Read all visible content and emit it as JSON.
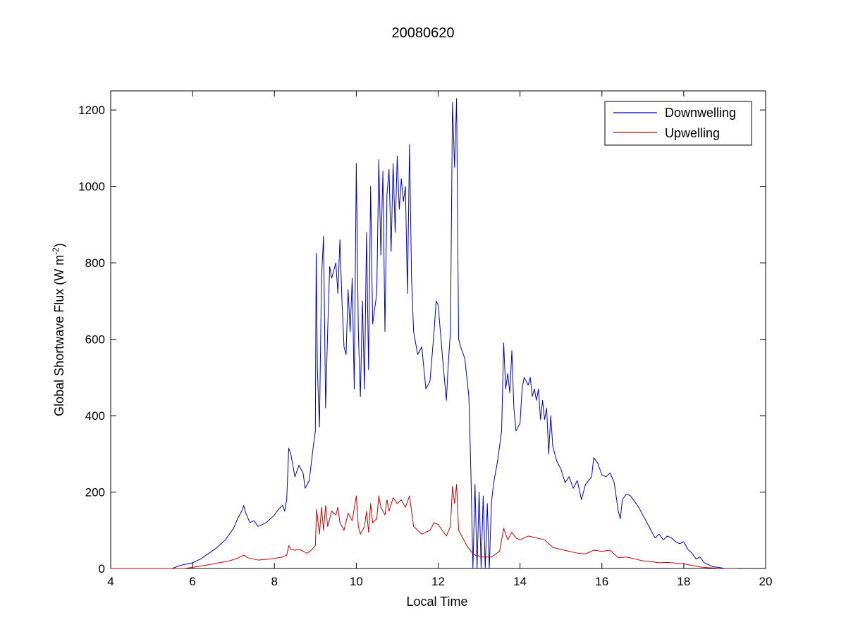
{
  "chart_data": {
    "type": "line",
    "title": "20080620",
    "xlabel": "Local Time",
    "ylabel": "Global Shortwave Flux (W m",
    "ylabel_sup": "-2",
    "ylabel_close": ")",
    "xlim": [
      4,
      20
    ],
    "ylim": [
      0,
      1250
    ],
    "xticks": [
      4,
      6,
      8,
      10,
      12,
      14,
      16,
      18,
      20
    ],
    "yticks": [
      0,
      200,
      400,
      600,
      800,
      1000,
      1200
    ],
    "grid": false,
    "legend_position": "top-right",
    "series": [
      {
        "name": "Downwelling",
        "color": "#0000cc",
        "points": [
          [
            4.0,
            0
          ],
          [
            5.5,
            0
          ],
          [
            5.7,
            8
          ],
          [
            6.0,
            15
          ],
          [
            6.2,
            25
          ],
          [
            6.4,
            40
          ],
          [
            6.6,
            55
          ],
          [
            6.8,
            75
          ],
          [
            7.0,
            105
          ],
          [
            7.1,
            130
          ],
          [
            7.2,
            150
          ],
          [
            7.25,
            165
          ],
          [
            7.3,
            145
          ],
          [
            7.4,
            120
          ],
          [
            7.5,
            125
          ],
          [
            7.6,
            110
          ],
          [
            7.8,
            120
          ],
          [
            8.0,
            140
          ],
          [
            8.1,
            155
          ],
          [
            8.2,
            165
          ],
          [
            8.25,
            150
          ],
          [
            8.3,
            180
          ],
          [
            8.35,
            315
          ],
          [
            8.4,
            300
          ],
          [
            8.5,
            240
          ],
          [
            8.6,
            270
          ],
          [
            8.7,
            250
          ],
          [
            8.75,
            210
          ],
          [
            8.85,
            230
          ],
          [
            8.95,
            320
          ],
          [
            9.0,
            360
          ],
          [
            9.02,
            825
          ],
          [
            9.05,
            520
          ],
          [
            9.1,
            370
          ],
          [
            9.15,
            760
          ],
          [
            9.2,
            870
          ],
          [
            9.25,
            420
          ],
          [
            9.3,
            620
          ],
          [
            9.35,
            790
          ],
          [
            9.4,
            760
          ],
          [
            9.5,
            800
          ],
          [
            9.55,
            720
          ],
          [
            9.6,
            860
          ],
          [
            9.65,
            700
          ],
          [
            9.7,
            580
          ],
          [
            9.75,
            560
          ],
          [
            9.8,
            730
          ],
          [
            9.85,
            620
          ],
          [
            9.9,
            760
          ],
          [
            9.95,
            470
          ],
          [
            10.0,
            1060
          ],
          [
            10.05,
            620
          ],
          [
            10.1,
            450
          ],
          [
            10.15,
            700
          ],
          [
            10.2,
            470
          ],
          [
            10.25,
            880
          ],
          [
            10.3,
            520
          ],
          [
            10.35,
            1000
          ],
          [
            10.4,
            640
          ],
          [
            10.5,
            720
          ],
          [
            10.55,
            1070
          ],
          [
            10.6,
            820
          ],
          [
            10.65,
            1040
          ],
          [
            10.7,
            620
          ],
          [
            10.75,
            980
          ],
          [
            10.8,
            1045
          ],
          [
            10.85,
            830
          ],
          [
            10.9,
            1060
          ],
          [
            10.95,
            880
          ],
          [
            11.0,
            1080
          ],
          [
            11.05,
            940
          ],
          [
            11.1,
            1020
          ],
          [
            11.15,
            960
          ],
          [
            11.2,
            1000
          ],
          [
            11.25,
            720
          ],
          [
            11.3,
            1110
          ],
          [
            11.35,
            760
          ],
          [
            11.4,
            620
          ],
          [
            11.5,
            560
          ],
          [
            11.6,
            580
          ],
          [
            11.7,
            470
          ],
          [
            11.8,
            490
          ],
          [
            11.9,
            620
          ],
          [
            11.95,
            700
          ],
          [
            12.0,
            690
          ],
          [
            12.1,
            560
          ],
          [
            12.2,
            440
          ],
          [
            12.25,
            540
          ],
          [
            12.3,
            620
          ],
          [
            12.35,
            1220
          ],
          [
            12.4,
            1050
          ],
          [
            12.45,
            1230
          ],
          [
            12.5,
            600
          ],
          [
            12.55,
            580
          ],
          [
            12.65,
            550
          ],
          [
            12.75,
            450
          ],
          [
            12.8,
            250
          ],
          [
            12.85,
            0
          ],
          [
            12.9,
            220
          ],
          [
            12.95,
            0
          ],
          [
            13.0,
            200
          ],
          [
            13.05,
            0
          ],
          [
            13.1,
            190
          ],
          [
            13.15,
            0
          ],
          [
            13.2,
            170
          ],
          [
            13.25,
            0
          ],
          [
            13.3,
            170
          ],
          [
            13.35,
            220
          ],
          [
            13.45,
            280
          ],
          [
            13.55,
            360
          ],
          [
            13.6,
            590
          ],
          [
            13.65,
            470
          ],
          [
            13.7,
            510
          ],
          [
            13.75,
            460
          ],
          [
            13.8,
            570
          ],
          [
            13.85,
            420
          ],
          [
            13.9,
            360
          ],
          [
            14.0,
            380
          ],
          [
            14.05,
            470
          ],
          [
            14.1,
            500
          ],
          [
            14.2,
            480
          ],
          [
            14.25,
            500
          ],
          [
            14.3,
            450
          ],
          [
            14.35,
            470
          ],
          [
            14.4,
            440
          ],
          [
            14.45,
            470
          ],
          [
            14.5,
            390
          ],
          [
            14.55,
            440
          ],
          [
            14.6,
            390
          ],
          [
            14.65,
            420
          ],
          [
            14.7,
            300
          ],
          [
            14.75,
            400
          ],
          [
            14.8,
            320
          ],
          [
            14.9,
            280
          ],
          [
            15.0,
            260
          ],
          [
            15.1,
            225
          ],
          [
            15.2,
            240
          ],
          [
            15.3,
            210
          ],
          [
            15.4,
            230
          ],
          [
            15.5,
            180
          ],
          [
            15.6,
            220
          ],
          [
            15.75,
            240
          ],
          [
            15.8,
            290
          ],
          [
            15.9,
            275
          ],
          [
            16.0,
            245
          ],
          [
            16.1,
            240
          ],
          [
            16.2,
            250
          ],
          [
            16.3,
            225
          ],
          [
            16.4,
            150
          ],
          [
            16.45,
            130
          ],
          [
            16.5,
            180
          ],
          [
            16.6,
            195
          ],
          [
            16.7,
            190
          ],
          [
            16.8,
            175
          ],
          [
            16.9,
            160
          ],
          [
            17.0,
            140
          ],
          [
            17.1,
            120
          ],
          [
            17.2,
            100
          ],
          [
            17.3,
            80
          ],
          [
            17.4,
            90
          ],
          [
            17.5,
            75
          ],
          [
            17.6,
            85
          ],
          [
            17.7,
            80
          ],
          [
            17.8,
            70
          ],
          [
            17.9,
            65
          ],
          [
            18.0,
            70
          ],
          [
            18.1,
            50
          ],
          [
            18.2,
            40
          ],
          [
            18.3,
            25
          ],
          [
            18.4,
            30
          ],
          [
            18.5,
            15
          ],
          [
            18.7,
            5
          ],
          [
            18.9,
            2
          ],
          [
            19.0,
            0
          ]
        ]
      },
      {
        "name": "Upwelling",
        "color": "#cc0000",
        "points": [
          [
            4.0,
            0
          ],
          [
            5.8,
            0
          ],
          [
            6.0,
            3
          ],
          [
            6.3,
            8
          ],
          [
            6.6,
            14
          ],
          [
            6.9,
            20
          ],
          [
            7.1,
            27
          ],
          [
            7.25,
            35
          ],
          [
            7.35,
            28
          ],
          [
            7.6,
            22
          ],
          [
            7.9,
            25
          ],
          [
            8.2,
            30
          ],
          [
            8.3,
            35
          ],
          [
            8.35,
            60
          ],
          [
            8.4,
            50
          ],
          [
            8.5,
            48
          ],
          [
            8.6,
            50
          ],
          [
            8.7,
            45
          ],
          [
            8.8,
            40
          ],
          [
            8.9,
            48
          ],
          [
            9.0,
            60
          ],
          [
            9.03,
            155
          ],
          [
            9.1,
            90
          ],
          [
            9.15,
            160
          ],
          [
            9.2,
            100
          ],
          [
            9.25,
            165
          ],
          [
            9.3,
            110
          ],
          [
            9.4,
            150
          ],
          [
            9.5,
            140
          ],
          [
            9.55,
            160
          ],
          [
            9.6,
            120
          ],
          [
            9.7,
            100
          ],
          [
            9.8,
            145
          ],
          [
            9.9,
            125
          ],
          [
            10.0,
            190
          ],
          [
            10.05,
            110
          ],
          [
            10.1,
            90
          ],
          [
            10.2,
            110
          ],
          [
            10.25,
            150
          ],
          [
            10.3,
            95
          ],
          [
            10.35,
            170
          ],
          [
            10.4,
            120
          ],
          [
            10.5,
            130
          ],
          [
            10.55,
            190
          ],
          [
            10.6,
            160
          ],
          [
            10.7,
            140
          ],
          [
            10.75,
            180
          ],
          [
            10.8,
            150
          ],
          [
            10.9,
            185
          ],
          [
            11.0,
            170
          ],
          [
            11.1,
            180
          ],
          [
            11.2,
            160
          ],
          [
            11.3,
            190
          ],
          [
            11.4,
            110
          ],
          [
            11.5,
            100
          ],
          [
            11.6,
            90
          ],
          [
            11.8,
            100
          ],
          [
            11.9,
            120
          ],
          [
            12.0,
            115
          ],
          [
            12.1,
            100
          ],
          [
            12.2,
            85
          ],
          [
            12.3,
            110
          ],
          [
            12.35,
            215
          ],
          [
            12.4,
            170
          ],
          [
            12.45,
            220
          ],
          [
            12.5,
            100
          ],
          [
            12.6,
            80
          ],
          [
            12.7,
            60
          ],
          [
            12.8,
            45
          ],
          [
            12.9,
            35
          ],
          [
            13.1,
            30
          ],
          [
            13.3,
            30
          ],
          [
            13.5,
            45
          ],
          [
            13.6,
            105
          ],
          [
            13.7,
            75
          ],
          [
            13.8,
            95
          ],
          [
            13.9,
            80
          ],
          [
            14.0,
            75
          ],
          [
            14.2,
            85
          ],
          [
            14.4,
            80
          ],
          [
            14.6,
            75
          ],
          [
            14.8,
            55
          ],
          [
            15.0,
            50
          ],
          [
            15.2,
            45
          ],
          [
            15.4,
            40
          ],
          [
            15.6,
            38
          ],
          [
            15.8,
            48
          ],
          [
            16.0,
            45
          ],
          [
            16.2,
            48
          ],
          [
            16.4,
            28
          ],
          [
            16.6,
            30
          ],
          [
            16.8,
            25
          ],
          [
            17.0,
            20
          ],
          [
            17.2,
            18
          ],
          [
            17.4,
            15
          ],
          [
            17.6,
            16
          ],
          [
            17.8,
            14
          ],
          [
            18.0,
            12
          ],
          [
            18.2,
            8
          ],
          [
            18.4,
            4
          ],
          [
            18.6,
            2
          ],
          [
            18.8,
            1
          ],
          [
            19.3,
            0
          ]
        ]
      }
    ]
  }
}
